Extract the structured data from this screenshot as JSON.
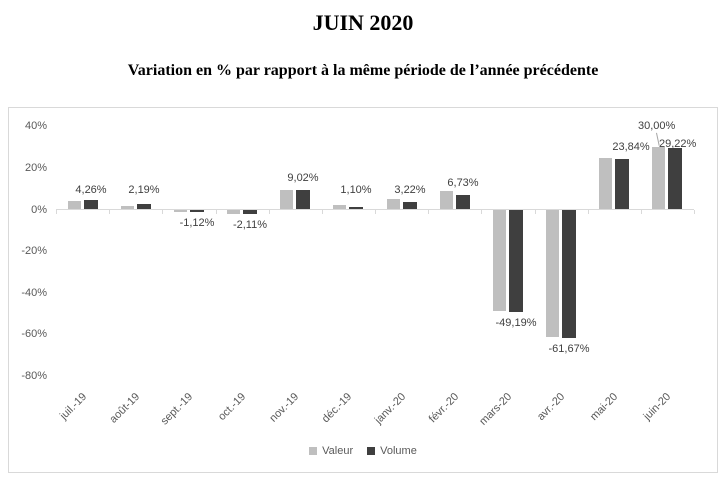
{
  "chart_data": {
    "type": "bar",
    "title": "JUIN 2020",
    "subtitle": "Variation en % par rapport à la même période de l’année précédente",
    "categories": [
      "juil.-19",
      "août-19",
      "sept.-19",
      "oct.-19",
      "nov.-19",
      "déc.-19",
      "janv.-20",
      "févr.-20",
      "mars-20",
      "avr.-20",
      "mai-20",
      "juin-20"
    ],
    "series": [
      {
        "name": "Valeur",
        "color": "#bfbfbf",
        "values": [
          3.9,
          1.4,
          -0.9,
          -1.9,
          9.0,
          2.0,
          4.6,
          8.6,
          -48.4,
          -60.9,
          24.6,
          30.0
        ],
        "data_labels": [
          "",
          "",
          "",
          "",
          "",
          "",
          "",
          "",
          "",
          "",
          "",
          "30,00%"
        ]
      },
      {
        "name": "Volume",
        "color": "#3f3f3f",
        "values": [
          4.26,
          2.19,
          -1.12,
          -2.11,
          9.02,
          1.1,
          3.22,
          6.73,
          -49.19,
          -61.67,
          23.84,
          29.22
        ],
        "data_labels": [
          "4,26%",
          "2,19%",
          "-1,12%",
          "-2,11%",
          "9,02%",
          "1,10%",
          "3,22%",
          "6,73%",
          "-49,19%",
          "-61,67%",
          "23,84%",
          "29,22%"
        ]
      }
    ],
    "y_axis": {
      "tick_labels": [
        "40%",
        "20%",
        "0%",
        "-20%",
        "-40%",
        "-60%",
        "-80%"
      ],
      "tick_values": [
        40,
        20,
        0,
        -20,
        -40,
        -60,
        -80
      ],
      "min": -80,
      "max": 40,
      "grid": false
    },
    "legend": {
      "position": "bottom",
      "items": [
        {
          "label": "Valeur",
          "color": "#bfbfbf"
        },
        {
          "label": "Volume",
          "color": "#3f3f3f"
        }
      ]
    },
    "colors": {
      "axis": "#d9d9d9",
      "tick_labels": "#595959",
      "data_labels": "#3f3f3f"
    }
  }
}
